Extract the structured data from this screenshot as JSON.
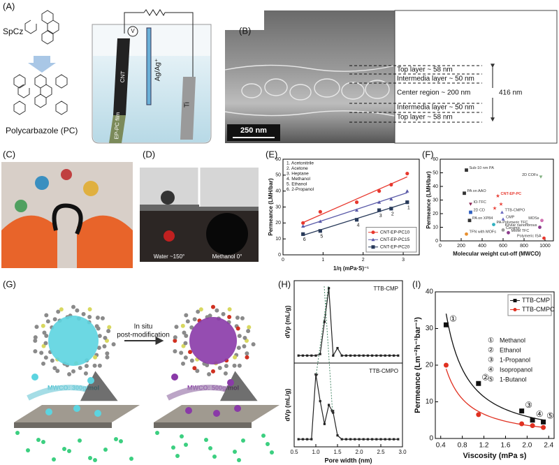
{
  "panels": {
    "A": {
      "label": "(A)",
      "monomer": "SpCz",
      "polymer": "Polycarbazole (PC)",
      "voltmeter": "V",
      "electrodes": {
        "cnt": "CNT",
        "film": "EP-PC film",
        "reference": "Ag/Ag⁺",
        "counter": "Ti"
      }
    },
    "B": {
      "label": "(B)",
      "layers": [
        "Top layer ~ 58 nm",
        "Intermedia layer ~ 50 nm",
        "Center region ~ 200 nm",
        "Intermedia layer ~ 50 nm",
        "Top layer ~ 58 nm"
      ],
      "total": "416 nm",
      "scale_bar": "250 nm"
    },
    "C": {
      "label": "(C)"
    },
    "D": {
      "label": "(D)",
      "water": "Water ~150°",
      "methanol": "Methanol 0°"
    },
    "E": {
      "label": "(E)"
    },
    "F": {
      "label": "(F)"
    },
    "G": {
      "label": "(G)",
      "step": [
        "In situ",
        "post-modification"
      ],
      "before": "MWCO: 300g/mol",
      "after": "MWCO: 500g/mol"
    },
    "H": {
      "label": "(H)"
    },
    "I": {
      "label": "(I)"
    }
  },
  "chart_data": [
    {
      "type": "scatter",
      "xlabel": "1/η (mPa·S)⁻¹",
      "ylabel": "Permeance (LMH/bar)",
      "x": [
        0.5,
        0.93,
        1.84,
        2.4,
        2.7,
        3.1
      ],
      "point_labels": [
        "6",
        "5",
        "4",
        "3",
        "2",
        "1"
      ],
      "solvents": [
        "1. Acetonitrile",
        "2. Acetone",
        "3. Heptane",
        "4. Methanol",
        "5. Ethanol",
        "6. 2-Propanol"
      ],
      "series": [
        {
          "name": "CNT-EP-PC10",
          "color": "#e8382e",
          "marker": "circle",
          "values": [
            20,
            27,
            33,
            40,
            44,
            51
          ]
        },
        {
          "name": "CNT-EP-PC15",
          "color": "#5a5aa8",
          "marker": "triangle",
          "values": [
            18,
            21,
            28,
            33,
            35,
            40
          ]
        },
        {
          "name": "CNT-EP-PC20",
          "color": "#283a5a",
          "marker": "square",
          "values": [
            13,
            15,
            22,
            28,
            29,
            33
          ]
        }
      ],
      "xlim": [
        0,
        3.4
      ],
      "ylim": [
        0,
        60
      ],
      "xticks": [
        0,
        1,
        2,
        3
      ],
      "yticks": [
        0,
        10,
        20,
        30,
        40,
        50,
        60
      ],
      "legend": "lower right",
      "fit": "linear"
    },
    {
      "type": "scatter",
      "xlabel": "Molecular weight cut-off (MWCO)",
      "ylabel": "Permeance (LMH/bar)",
      "x": [
        250,
        960,
        230,
        550,
        580,
        520,
        290,
        590,
        600,
        290,
        280,
        510,
        250,
        600,
        650,
        970,
        950,
        990
      ],
      "values": [
        52,
        47,
        35,
        33,
        27,
        24,
        27,
        21,
        16,
        21,
        15,
        12,
        5,
        8,
        6,
        15,
        10,
        2
      ],
      "point_labels": [
        "Sub-10 nm PA",
        "2D COFs",
        "PA on AAO",
        "CNT-EP-PC",
        null,
        null,
        "IO-TFC",
        "TTB-CMPO",
        "CMP",
        "2D CD",
        "PA on XP84",
        "PA-Polymeric TFC",
        "TFN with MOFs",
        "Ceramic",
        "MMM TFC",
        "MOSs",
        "Kevlar nanofibrous",
        "Polymeric ISA"
      ],
      "colors": [
        "#333333",
        "#7fb07f",
        "#333333",
        "#e8382e",
        "#e8382e",
        "#e8382e",
        "#8b2252",
        "#6a6ac0",
        "#6a6ac0",
        "#3060c0",
        "#333333",
        "#30b0c0",
        "#e89030",
        "#999999",
        "#8b3a8b",
        "#d070b0",
        "#8b3a8b",
        "#e8382e"
      ],
      "markers": [
        "square",
        "triangle-down",
        "square",
        "star",
        "star",
        "star",
        "triangle-down",
        "triangle",
        "triangle",
        "square",
        "square",
        "circle",
        "circle",
        "circle",
        "circle",
        "circle",
        "circle",
        "circle"
      ],
      "xlim": [
        0,
        1080
      ],
      "ylim": [
        0,
        60
      ],
      "xticks": [
        0,
        200,
        400,
        600,
        800,
        1000
      ],
      "yticks": [
        0,
        10,
        20,
        30,
        40,
        50,
        60
      ]
    },
    {
      "type": "line",
      "title": "TTB-CMP",
      "ylabel": "dVp (mL/g)",
      "color": "#222222",
      "x": [
        0.6,
        0.7,
        0.8,
        0.9,
        1.0,
        1.1,
        1.2,
        1.3,
        1.4,
        1.5,
        1.6,
        1.7,
        1.8,
        1.9,
        2.0,
        2.1,
        2.2,
        2.3,
        2.4,
        2.5,
        2.6,
        2.7,
        2.8,
        2.9
      ],
      "values": [
        0.1,
        0.1,
        0.1,
        0.1,
        0.1,
        0.12,
        0.55,
        1.0,
        0.1,
        0.2,
        0.1,
        0.1,
        0.1,
        0.1,
        0.1,
        0.1,
        0.1,
        0.1,
        0.1,
        0.1,
        0.1,
        0.1,
        0.1,
        0.1
      ],
      "xlim": [
        0.5,
        3.0
      ],
      "ylim": [
        0,
        1.1
      ]
    },
    {
      "type": "line",
      "title": "TTB-CMPO",
      "ylabel": "dVp (mL/g)",
      "xlabel": "Pore width (nm)",
      "color": "#222222",
      "x": [
        0.6,
        0.7,
        0.8,
        0.9,
        1.0,
        1.1,
        1.2,
        1.3,
        1.4,
        1.5,
        1.6,
        1.7,
        1.8,
        1.9,
        2.0,
        2.1,
        2.2,
        2.3,
        2.4,
        2.5,
        2.6,
        2.7,
        2.8,
        2.9
      ],
      "values": [
        0.1,
        0.1,
        0.1,
        0.1,
        0.95,
        0.6,
        0.3,
        0.55,
        0.45,
        0.15,
        0.1,
        0.1,
        0.1,
        0.1,
        0.1,
        0.1,
        0.1,
        0.1,
        0.1,
        0.1,
        0.1,
        0.1,
        0.1,
        0.1
      ],
      "xlim": [
        0.5,
        3.0
      ],
      "ylim": [
        0,
        1.1
      ],
      "xticks": [
        0.5,
        {
          "value": 1.0,
          "label": "1.0"
        },
        1.5,
        {
          "value": 2.0,
          "label": "2.0"
        },
        2.5,
        {
          "value": 3.0,
          "label": "3.0"
        }
      ]
    },
    {
      "type": "scatter",
      "xlabel": "Viscosity (mPa s)",
      "ylabel": "Permeance (Lm⁻²h⁻¹bar⁻¹)",
      "x": [
        0.5,
        1.1,
        1.9,
        2.1,
        2.3
      ],
      "point_labels": [
        "①",
        "②",
        "③",
        "④",
        "⑤"
      ],
      "solvents": [
        {
          "symbol": "①",
          "name": "Methanol"
        },
        {
          "symbol": "②",
          "name": "Ethanol"
        },
        {
          "symbol": "③",
          "name": "1-Propanol"
        },
        {
          "symbol": "④",
          "name": "Isopropanol"
        },
        {
          "symbol": "⑤",
          "name": "1-Butanol"
        }
      ],
      "series": [
        {
          "name": "TTB-CMP",
          "color": "#111111",
          "marker": "square",
          "values": [
            31,
            15,
            7.5,
            5,
            4.5
          ]
        },
        {
          "name": "TTB-CMPO",
          "color": "#e03020",
          "marker": "circle",
          "values": [
            20,
            6.5,
            4,
            3.5,
            3
          ]
        }
      ],
      "xlim": [
        0.3,
        2.5
      ],
      "ylim": [
        0,
        40
      ],
      "xticks": [
        0.4,
        0.8,
        1.2,
        1.6,
        {
          "value": 2.0,
          "label": "2.0"
        },
        2.4
      ],
      "yticks": [
        0,
        10,
        20,
        30,
        40
      ],
      "legend": "upper right",
      "fit": "power"
    }
  ]
}
